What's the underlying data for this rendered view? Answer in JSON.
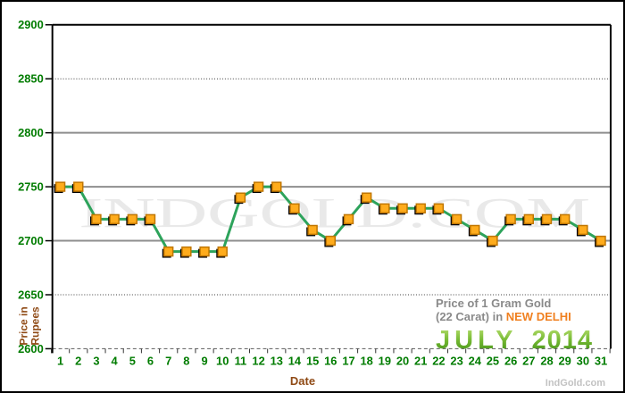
{
  "window": {
    "background": "#FFFFFF",
    "border_color": "#000000"
  },
  "chart_data": {
    "type": "line",
    "title": "Price of 1 Gram Gold (22 Carat) in NEW DELHI - JULY 2014",
    "x": [
      1,
      2,
      3,
      4,
      5,
      6,
      7,
      8,
      9,
      10,
      11,
      12,
      13,
      14,
      15,
      16,
      17,
      18,
      19,
      20,
      21,
      22,
      23,
      24,
      25,
      26,
      27,
      28,
      29,
      30,
      31
    ],
    "values": [
      2750,
      2750,
      2720,
      2720,
      2720,
      2720,
      2690,
      2690,
      2690,
      2690,
      2740,
      2750,
      2750,
      2730,
      2710,
      2700,
      2720,
      2740,
      2730,
      2730,
      2730,
      2730,
      2720,
      2710,
      2700,
      2720,
      2720,
      2720,
      2720,
      2710,
      2700
    ],
    "xlabel": "Date",
    "ylabel": "Price in Rupees",
    "ylim": [
      2600,
      2900
    ],
    "yticks": [
      2600,
      2650,
      2700,
      2750,
      2800,
      2850,
      2900
    ],
    "gridline_styles": {
      "2600": "dashed",
      "2650": "dotted",
      "2700": "solid",
      "2750": "solid",
      "2800": "solid",
      "2850": "dotted",
      "2900": "solid-dark"
    },
    "grid": true,
    "legend_position": "none",
    "line_color": "#2DA35B",
    "marker_fill": "#FFAC1C",
    "marker_stroke": "#C07600",
    "marker_shadow": "#000000"
  },
  "labels": {
    "title_line1": "Price of 1 Gram Gold",
    "title_line2_prefix": "(22 Carat) in ",
    "title_line2_highlight": "NEW DELHI",
    "month": "JULY",
    "year": "2014",
    "watermark": "INDGOLD.COM",
    "footer": "IndGold.com",
    "xlabel": "Date",
    "ylabel_line1": "Price in",
    "ylabel_line2": "Rupees"
  },
  "colors": {
    "axis_text_green": "#007C00",
    "axis_label_brown": "#8F4A15",
    "title_gray": "#8A8A8A",
    "highlight_orange": "#F08020",
    "month_green_top": "#BCE273",
    "month_green_bottom": "#3E8E18",
    "gridline_gray": "#8E8E8E",
    "watermark_gray": "#E9E9E9",
    "footer_gray": "#C2C2C2"
  }
}
